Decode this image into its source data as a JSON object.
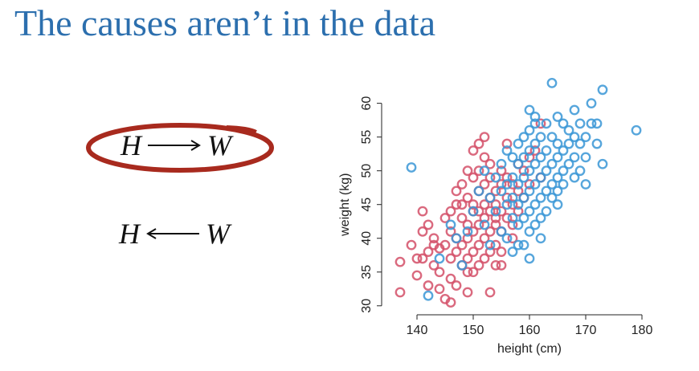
{
  "slide": {
    "title": "The causes aren’t in the data"
  },
  "dag1": {
    "from": "H",
    "to": "W",
    "direction": "right",
    "highlighted": true,
    "highlight_color": "#a82a1e"
  },
  "dag2": {
    "from": "H",
    "to": "W",
    "direction": "left",
    "highlighted": false
  },
  "colors": {
    "title": "#2c6fae",
    "red_series": "#d45068",
    "blue_series": "#3a97d6"
  },
  "chart_data": {
    "type": "scatter",
    "xlabel": "height (cm)",
    "ylabel": "weight (kg)",
    "xlim": [
      135,
      181
    ],
    "ylim": [
      29.5,
      64
    ],
    "xticks": [
      140,
      150,
      160,
      170,
      180
    ],
    "yticks": [
      30,
      35,
      40,
      45,
      50,
      55,
      60
    ],
    "grid": false,
    "legend": "none",
    "marker": "open-circle",
    "series": [
      {
        "color": "#d45068",
        "points": [
          [
            137,
            36.5
          ],
          [
            137,
            32
          ],
          [
            139,
            39
          ],
          [
            140,
            37
          ],
          [
            140,
            34.5
          ],
          [
            141,
            44
          ],
          [
            141,
            41
          ],
          [
            142,
            42
          ],
          [
            142,
            38
          ],
          [
            142,
            33
          ],
          [
            143,
            40
          ],
          [
            143,
            36
          ],
          [
            144,
            38.5
          ],
          [
            144,
            35
          ],
          [
            145,
            43
          ],
          [
            145,
            39
          ],
          [
            145,
            31
          ],
          [
            146,
            44
          ],
          [
            146,
            41
          ],
          [
            146,
            37
          ],
          [
            146,
            34
          ],
          [
            147,
            47
          ],
          [
            147,
            45
          ],
          [
            147,
            40
          ],
          [
            147,
            38
          ],
          [
            147,
            33
          ],
          [
            148,
            48
          ],
          [
            148,
            43
          ],
          [
            148,
            39
          ],
          [
            148,
            36
          ],
          [
            149,
            50
          ],
          [
            149,
            46
          ],
          [
            149,
            42
          ],
          [
            149,
            40
          ],
          [
            149,
            37
          ],
          [
            149,
            32
          ],
          [
            150,
            53
          ],
          [
            150,
            49
          ],
          [
            150,
            45
          ],
          [
            150,
            41
          ],
          [
            150,
            38
          ],
          [
            150,
            35
          ],
          [
            151,
            50
          ],
          [
            151,
            47
          ],
          [
            151,
            44
          ],
          [
            151,
            42
          ],
          [
            151,
            39
          ],
          [
            151,
            36
          ],
          [
            152,
            48
          ],
          [
            152,
            45
          ],
          [
            152,
            43
          ],
          [
            152,
            40
          ],
          [
            152,
            37
          ],
          [
            153,
            51
          ],
          [
            153,
            49
          ],
          [
            153,
            46
          ],
          [
            153,
            44
          ],
          [
            153,
            41
          ],
          [
            153,
            38
          ],
          [
            153,
            32
          ],
          [
            154,
            47
          ],
          [
            154,
            45
          ],
          [
            154,
            42
          ],
          [
            154,
            39
          ],
          [
            154,
            36
          ],
          [
            155,
            50
          ],
          [
            155,
            48
          ],
          [
            155,
            44
          ],
          [
            155,
            41
          ],
          [
            155,
            38
          ],
          [
            156,
            54
          ],
          [
            156,
            49
          ],
          [
            156,
            46
          ],
          [
            156,
            43
          ],
          [
            157,
            48
          ],
          [
            157,
            45
          ],
          [
            157,
            42
          ],
          [
            157,
            40
          ],
          [
            158,
            51
          ],
          [
            158,
            47
          ],
          [
            158,
            44
          ],
          [
            159,
            50
          ],
          [
            159,
            46
          ],
          [
            160,
            52
          ],
          [
            160,
            48
          ],
          [
            161,
            53
          ],
          [
            162,
            57
          ],
          [
            162,
            49
          ],
          [
            146,
            30.5
          ],
          [
            144,
            32.5
          ],
          [
            151,
            54
          ],
          [
            152,
            55
          ],
          [
            143,
            39
          ],
          [
            149,
            35
          ],
          [
            155,
            36
          ],
          [
            150,
            44
          ],
          [
            148,
            45
          ],
          [
            152,
            52
          ],
          [
            141,
            37
          ],
          [
            154,
            43
          ]
        ]
      },
      {
        "color": "#3a97d6",
        "points": [
          [
            139,
            50.5
          ],
          [
            142,
            31.5
          ],
          [
            144,
            37
          ],
          [
            146,
            42
          ],
          [
            147,
            40
          ],
          [
            148,
            36
          ],
          [
            149,
            41
          ],
          [
            150,
            44
          ],
          [
            151,
            47
          ],
          [
            152,
            50
          ],
          [
            152,
            42
          ],
          [
            153,
            46
          ],
          [
            153,
            39
          ],
          [
            154,
            49
          ],
          [
            154,
            44
          ],
          [
            155,
            51
          ],
          [
            155,
            47
          ],
          [
            155,
            41
          ],
          [
            156,
            53
          ],
          [
            156,
            48
          ],
          [
            156,
            45
          ],
          [
            156,
            40
          ],
          [
            157,
            52
          ],
          [
            157,
            49
          ],
          [
            157,
            46
          ],
          [
            157,
            43
          ],
          [
            157,
            38
          ],
          [
            158,
            54
          ],
          [
            158,
            51
          ],
          [
            158,
            48
          ],
          [
            158,
            45
          ],
          [
            158,
            42
          ],
          [
            159,
            55
          ],
          [
            159,
            52
          ],
          [
            159,
            49
          ],
          [
            159,
            46
          ],
          [
            159,
            43
          ],
          [
            159,
            39
          ],
          [
            160,
            59
          ],
          [
            160,
            56
          ],
          [
            160,
            53
          ],
          [
            160,
            50
          ],
          [
            160,
            47
          ],
          [
            160,
            44
          ],
          [
            160,
            41
          ],
          [
            160,
            37
          ],
          [
            161,
            57
          ],
          [
            161,
            54
          ],
          [
            161,
            51
          ],
          [
            161,
            48
          ],
          [
            161,
            45
          ],
          [
            161,
            42
          ],
          [
            162,
            55
          ],
          [
            162,
            52
          ],
          [
            162,
            49
          ],
          [
            162,
            46
          ],
          [
            162,
            43
          ],
          [
            163,
            57
          ],
          [
            163,
            53
          ],
          [
            163,
            50
          ],
          [
            163,
            47
          ],
          [
            163,
            44
          ],
          [
            164,
            63
          ],
          [
            164,
            55
          ],
          [
            164,
            51
          ],
          [
            164,
            48
          ],
          [
            164,
            46
          ],
          [
            165,
            58
          ],
          [
            165,
            54
          ],
          [
            165,
            52
          ],
          [
            165,
            49
          ],
          [
            165,
            47
          ],
          [
            166,
            57
          ],
          [
            166,
            53
          ],
          [
            166,
            50
          ],
          [
            166,
            48
          ],
          [
            167,
            56
          ],
          [
            167,
            54
          ],
          [
            167,
            51
          ],
          [
            168,
            59
          ],
          [
            168,
            55
          ],
          [
            168,
            52
          ],
          [
            168,
            49
          ],
          [
            169,
            57
          ],
          [
            169,
            54
          ],
          [
            169,
            50
          ],
          [
            170,
            55
          ],
          [
            170,
            52
          ],
          [
            170,
            48
          ],
          [
            171,
            60
          ],
          [
            171,
            57
          ],
          [
            172,
            54
          ],
          [
            172,
            57
          ],
          [
            173,
            62
          ],
          [
            173,
            51
          ],
          [
            179,
            56
          ],
          [
            165,
            45
          ],
          [
            162,
            40
          ],
          [
            158,
            39
          ],
          [
            161,
            58
          ]
        ]
      }
    ]
  }
}
